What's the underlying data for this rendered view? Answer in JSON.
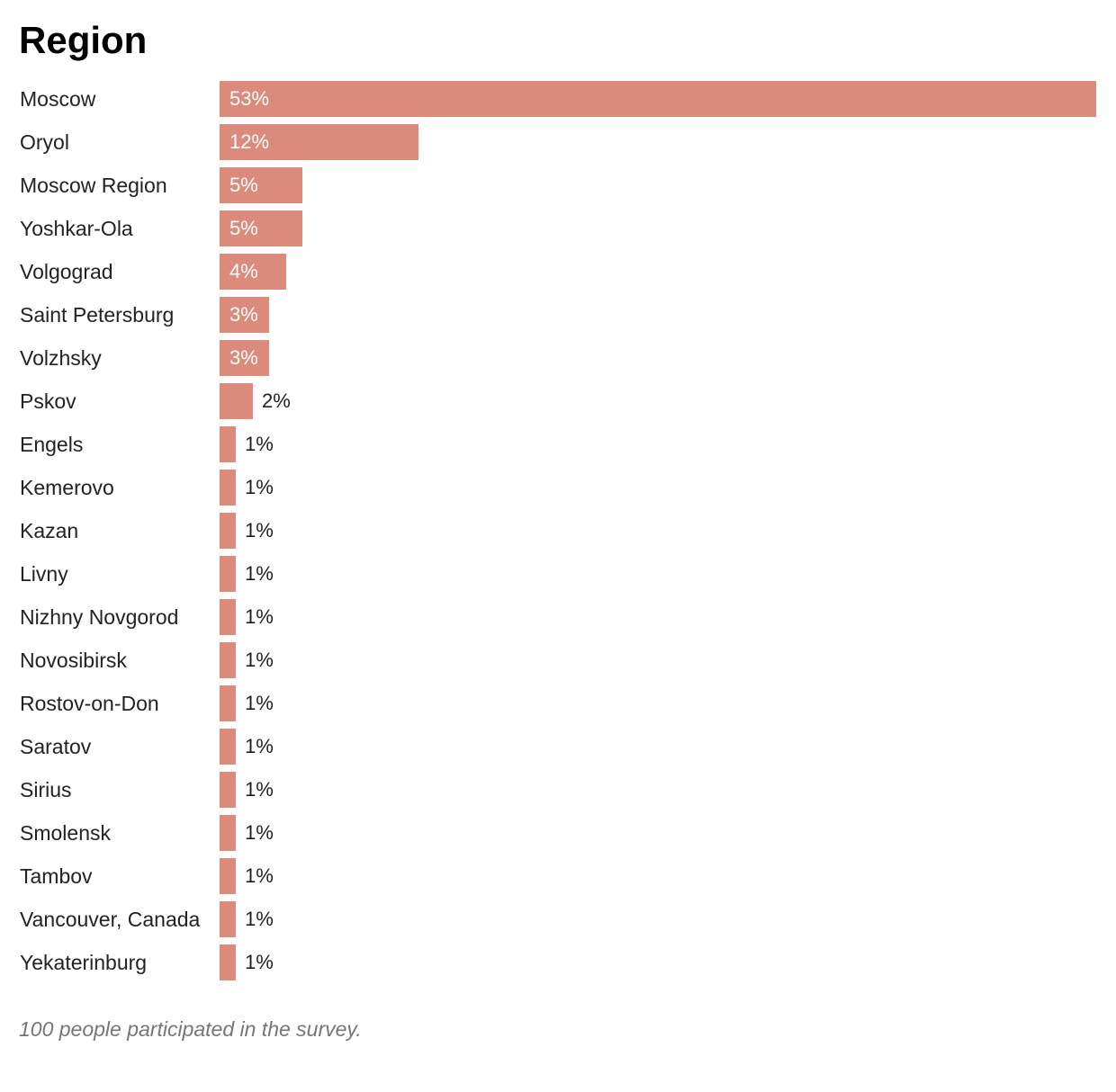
{
  "colors": {
    "bar": "#db8a7b"
  },
  "chart_data": {
    "type": "bar",
    "orientation": "horizontal",
    "title": "Region",
    "categories": [
      "Moscow",
      "Oryol",
      "Moscow Region",
      "Yoshkar-Ola",
      "Volgograd",
      "Saint Petersburg",
      "Volzhsky",
      "Pskov",
      "Engels",
      "Kemerovo",
      "Kazan",
      "Livny",
      "Nizhny Novgorod",
      "Novosibirsk",
      "Rostov-on-Don",
      "Saratov",
      "Sirius",
      "Smolensk",
      "Tambov",
      "Vancouver, Canada",
      "Yekaterinburg"
    ],
    "values": [
      53,
      12,
      5,
      5,
      4,
      3,
      3,
      2,
      1,
      1,
      1,
      1,
      1,
      1,
      1,
      1,
      1,
      1,
      1,
      1,
      1
    ],
    "value_labels": [
      "53%",
      "12%",
      "5%",
      "5%",
      "4%",
      "3%",
      "3%",
      "2%",
      "1%",
      "1%",
      "1%",
      "1%",
      "1%",
      "1%",
      "1%",
      "1%",
      "1%",
      "1%",
      "1%",
      "1%",
      "1%"
    ],
    "unit": "%",
    "xlim": [
      0,
      53
    ],
    "grid": false,
    "legend": "none"
  },
  "note": "100 people participated in the survey."
}
